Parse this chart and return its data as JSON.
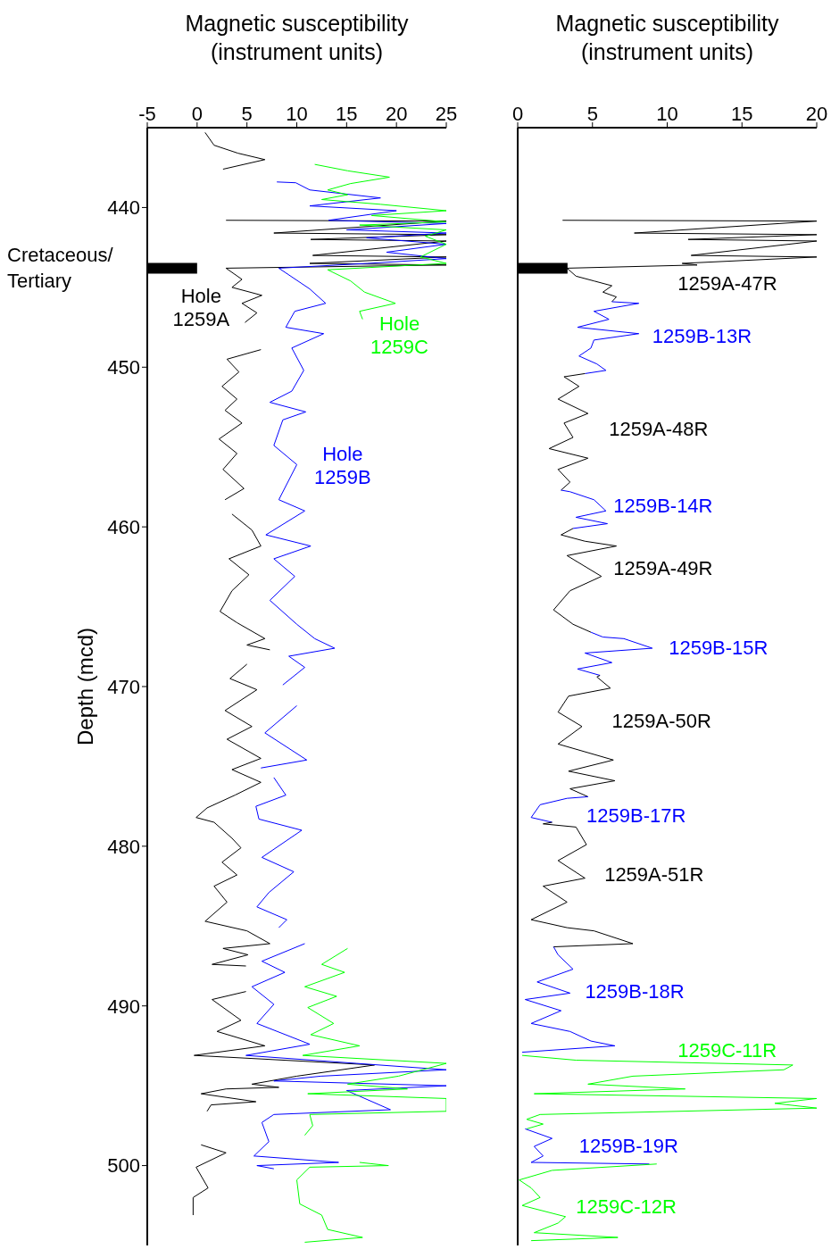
{
  "chart_data": [
    {
      "type": "line",
      "xlabel": "Magnetic susceptibility\n(instrument units)",
      "ylabel": "Depth (mcd)",
      "xlim": [
        -5,
        25
      ],
      "xticks": [
        -5,
        0,
        5,
        10,
        15,
        20,
        25
      ],
      "ylim": [
        505,
        435
      ],
      "yticks": [
        440,
        450,
        460,
        470,
        480,
        490,
        500
      ],
      "marker": "none",
      "line_style": "solid",
      "ref_lines": [
        {
          "axis": "y",
          "value": 443.8,
          "label": "Cretaceous/\nTertiary",
          "color": "#000000"
        }
      ],
      "series": [
        {
          "name": "Hole\n1259A",
          "color": "#000000",
          "x": [
            0.8,
            1.7,
            4.1,
            6.8,
            2.6,
            null,
            2.9,
            25,
            7.7,
            25,
            11.4,
            25,
            11.6,
            25,
            11.3,
            25,
            2.9,
            4.5,
            3.5,
            6.5,
            4.5,
            6.0,
            4.8,
            null,
            6.4,
            3.0,
            4.2,
            2.5,
            4.0,
            2.8,
            4.5,
            2.2,
            4.0,
            2.6,
            4.7,
            2.8,
            null,
            3.5,
            5.5,
            6.4,
            3.2,
            5.2,
            3.5,
            2.3,
            4.0,
            6.8,
            5.0,
            7.3,
            null,
            5.0,
            3.3,
            6.0,
            2.8,
            5.5,
            3.0,
            6.4,
            3.5,
            6.4,
            3.8,
            1.0,
            -0.1,
            1.7,
            3.5,
            4.4,
            2.5,
            4.0,
            1.7,
            3.0,
            0.8,
            5.0,
            7.3,
            2.6,
            5.1,
            1.5,
            4.9,
            null,
            4.9,
            1.5,
            4.4,
            2.0,
            6.8,
            -0.3,
            17.8,
            10.0,
            5.5,
            8.2,
            2.9,
            0.4,
            5.9,
            1.4,
            1.0,
            null,
            0.4,
            2.9,
            -0.1,
            1.1,
            -0.4,
            -0.4
          ],
          "values": [
            435.3,
            436.1,
            436.6,
            437.0,
            437.6,
            null,
            440.8,
            440.85,
            441.6,
            441.7,
            442.0,
            442.1,
            443.0,
            443.1,
            443.5,
            443.6,
            443.8,
            444.5,
            445.0,
            445.5,
            446.0,
            446.6,
            447.2,
            null,
            448.9,
            449.5,
            450.3,
            451.2,
            452.0,
            452.7,
            453.5,
            454.5,
            455.4,
            456.4,
            457.6,
            458.3,
            null,
            459.2,
            460.2,
            461.2,
            462.0,
            463.0,
            464.0,
            465.3,
            466.0,
            467.0,
            467.4,
            467.7,
            null,
            468.6,
            469.5,
            470.2,
            471.5,
            472.5,
            473.3,
            474.5,
            475.2,
            476.0,
            476.8,
            477.6,
            478.2,
            478.5,
            479.5,
            480.1,
            481.0,
            481.8,
            482.5,
            483.5,
            484.7,
            485.3,
            486.1,
            486.4,
            486.8,
            487.4,
            487.5,
            null,
            489.1,
            489.6,
            490.9,
            491.6,
            492.5,
            493.1,
            493.7,
            494.4,
            494.9,
            495.1,
            495.2,
            495.5,
            496.0,
            496.2,
            496.6,
            null,
            498.7,
            499.2,
            500.1,
            501.4,
            502.0,
            503.1
          ]
        },
        {
          "name": "Hole\n1259B",
          "color": "#0000ff",
          "x": [
            8.0,
            9.9,
            11.3,
            18.4,
            11.3,
            20.0,
            13.2,
            25,
            15.0,
            25,
            17.0,
            25,
            19.0,
            25,
            17.1,
            8.2,
            11.3,
            12.9,
            9.8,
            8.9,
            12.7,
            9.5,
            10.7,
            9.5,
            7.3,
            10.9,
            8.6,
            7.7,
            10.0,
            8.2,
            10.8,
            6.9,
            11.4,
            7.7,
            9.8,
            7.3,
            10.0,
            11.8,
            13.8,
            9.2,
            10.8,
            8.6,
            null,
            10.0,
            6.8,
            11.0,
            6.4,
            null,
            7.7,
            8.9,
            5.9,
            6.2,
            10.5,
            6.5,
            9.7,
            7.2,
            6.0,
            9.0,
            8.2,
            null,
            10.8,
            6.5,
            8.8,
            5.5,
            7.7,
            6.0,
            11.3,
            4.9,
            16.0,
            25,
            12.4,
            7.7,
            25,
            15.0,
            19.4,
            7.7,
            6.5,
            7.2,
            5.7,
            14.2,
            6.0,
            7.7
          ],
          "values": [
            438.4,
            438.45,
            438.9,
            439.4,
            439.9,
            440.2,
            440.8,
            441.0,
            441.4,
            441.6,
            441.9,
            442.3,
            442.8,
            443.2,
            443.5,
            443.8,
            445.1,
            446.0,
            446.5,
            447.5,
            447.9,
            448.8,
            450.2,
            451.5,
            452.2,
            452.8,
            453.3,
            454.9,
            456.1,
            458.3,
            459.0,
            460.5,
            461.2,
            462.0,
            463.1,
            464.6,
            466.1,
            467.0,
            467.6,
            468.1,
            468.8,
            469.9,
            null,
            471.2,
            472.9,
            474.6,
            475.1,
            null,
            475.7,
            476.8,
            477.5,
            478.3,
            479.0,
            480.7,
            481.6,
            482.9,
            483.8,
            484.6,
            485.1,
            null,
            486.1,
            487.2,
            487.9,
            488.8,
            489.9,
            491.1,
            492.4,
            493.1,
            493.6,
            494.0,
            494.4,
            494.7,
            495.0,
            495.3,
            496.5,
            496.8,
            497.3,
            498.5,
            499.4,
            499.8,
            500.0,
            500.2
          ]
        },
        {
          "name": "Hole\n1259C",
          "color": "#00ff00",
          "x": [
            11.8,
            15.1,
            19.3,
            15.4,
            13.1,
            15.1,
            12.5,
            18.4,
            25,
            17.5,
            25,
            16.3,
            25,
            22.9,
            25,
            22.4,
            25,
            13.1,
            15.4,
            16.8,
            19.9,
            16.3,
            16.6,
            null,
            15.1,
            12.5,
            14.8,
            10.8,
            14.0,
            11.1,
            13.7,
            11.4,
            16.3,
            10.6,
            25,
            20.2,
            15.1,
            21.1,
            11.1,
            25,
            25,
            11.3,
            11.6,
            10.8,
            null,
            16.3,
            19.2,
            11.3,
            10.0,
            10.3,
            12.5,
            13.1,
            16.6,
            10.8
          ],
          "values": [
            437.3,
            437.7,
            438.1,
            438.5,
            438.9,
            439.2,
            439.5,
            439.8,
            440.2,
            440.5,
            440.9,
            441.1,
            441.4,
            441.8,
            442.3,
            443.1,
            443.5,
            443.9,
            444.6,
            445.3,
            446.0,
            446.5,
            447.0,
            null,
            486.4,
            487.4,
            487.9,
            488.8,
            489.4,
            490.1,
            491.1,
            491.8,
            492.5,
            493.1,
            493.6,
            494.4,
            494.9,
            495.2,
            495.5,
            495.8,
            496.6,
            496.8,
            497.5,
            498.1,
            null,
            499.8,
            500.0,
            500.1,
            500.9,
            502.4,
            503.1,
            504.0,
            504.5,
            504.8
          ]
        }
      ]
    },
    {
      "type": "line",
      "xlabel": "Magnetic susceptibility\n(instrument units)",
      "xlim": [
        0,
        20
      ],
      "xticks": [
        0,
        5,
        10,
        15,
        20
      ],
      "ylim": [
        505,
        435
      ],
      "yticks": [
        440,
        450,
        460,
        470,
        480,
        490,
        500
      ],
      "tick_labels": "x",
      "marker": "none",
      "line_style": "solid",
      "ref_lines": [
        {
          "axis": "y",
          "value": 443.8,
          "color": "#000000"
        }
      ],
      "series": [
        {
          "name": "1259A-47R",
          "color": "#000000",
          "x": [
            3.0,
            20,
            7.8,
            20,
            11.4,
            20,
            11.6,
            20,
            11.0,
            12.0,
            3.3,
            3.9,
            5.1,
            6.3,
            5.7,
            6.6,
            6.3
          ],
          "values": [
            440.8,
            440.85,
            441.6,
            441.7,
            442.0,
            442.1,
            443.0,
            443.1,
            443.5,
            443.6,
            443.8,
            444.3,
            444.6,
            444.9,
            445.3,
            445.6,
            445.9
          ]
        },
        {
          "name": "1259B-13R",
          "color": "#0000ff",
          "x": [
            6.3,
            8.1,
            5.1,
            6.1,
            4.0,
            8.1,
            5.1,
            4.9,
            4.1,
            5.3,
            5.9,
            4.5
          ],
          "values": [
            445.9,
            446.0,
            446.5,
            447.0,
            447.5,
            447.9,
            448.3,
            448.8,
            449.3,
            449.8,
            450.2,
            450.4
          ]
        },
        {
          "name": "1259A-48R",
          "color": "#000000",
          "x": [
            4.5,
            3.1,
            4.1,
            2.7,
            4.7,
            3.1,
            3.7,
            2.1,
            4.7,
            2.7,
            3.5,
            2.9
          ],
          "values": [
            450.4,
            450.6,
            451.2,
            452.0,
            452.9,
            453.5,
            454.4,
            455.1,
            455.7,
            456.4,
            457.2,
            457.7
          ]
        },
        {
          "name": "1259B-14R",
          "color": "#0000ff",
          "x": [
            2.9,
            3.5,
            5.1,
            5.9,
            3.9,
            6.0,
            3.7
          ],
          "values": [
            457.7,
            457.8,
            458.3,
            459.0,
            459.4,
            459.8,
            460.1
          ]
        },
        {
          "name": "1259A-49R",
          "color": "#000000",
          "x": [
            3.7,
            2.9,
            4.5,
            6.6,
            3.3,
            5.6,
            3.5,
            2.4,
            3.7,
            4.9
          ],
          "values": [
            460.1,
            460.5,
            460.9,
            461.2,
            461.8,
            463.1,
            464.0,
            465.2,
            466.1,
            466.6
          ]
        },
        {
          "name": "1259B-15R",
          "color": "#0000ff",
          "x": [
            4.9,
            5.7,
            7.1,
            9.0,
            4.5,
            6.3,
            4.0,
            5.5
          ],
          "values": [
            466.6,
            466.9,
            467.0,
            467.6,
            467.9,
            468.5,
            468.9,
            469.3
          ]
        },
        {
          "name": "1259A-50R",
          "color": "#000000",
          "x": [
            5.5,
            5.3,
            6.2,
            3.4,
            2.7,
            4.3,
            2.7,
            6.4,
            3.4,
            6.5,
            3.5,
            4.7
          ],
          "values": [
            469.3,
            469.4,
            470.1,
            470.6,
            471.6,
            472.5,
            473.6,
            474.6,
            475.3,
            475.9,
            476.4,
            476.9
          ]
        },
        {
          "name": "1259B-17R",
          "color": "#0000ff",
          "x": [
            4.7,
            3.3,
            1.5,
            0.9,
            2.3
          ],
          "values": [
            476.9,
            477.0,
            477.4,
            478.2,
            478.5
          ]
        },
        {
          "name": "1259A-51R",
          "color": "#000000",
          "x": [
            2.3,
            1.7,
            3.9,
            4.6,
            2.7,
            4.5,
            1.7,
            3.3,
            0.9,
            3.3,
            5.1,
            7.7,
            2.4
          ],
          "values": [
            478.5,
            478.6,
            478.8,
            479.9,
            480.9,
            482.0,
            482.5,
            483.5,
            484.6,
            485.1,
            485.3,
            486.1,
            486.3
          ]
        },
        {
          "name": "1259B-18R",
          "color": "#0000ff",
          "x": [
            2.4,
            2.7,
            3.7,
            1.3,
            3.5,
            0.5,
            2.9,
            0.9,
            3.5,
            4.9,
            6.5,
            0.3
          ],
          "values": [
            486.3,
            486.8,
            487.7,
            488.5,
            489.2,
            489.6,
            490.3,
            491.1,
            491.6,
            492.2,
            492.5,
            492.9
          ]
        },
        {
          "name": "1259C-11R",
          "color": "#00ff00",
          "x": [
            0.3,
            3.9,
            18.4,
            17.8,
            7.7,
            4.7,
            11.2,
            1.1,
            20,
            17.2,
            20,
            1.5,
            0.6,
            1.7,
            0.6
          ],
          "values": [
            493.1,
            493.4,
            493.7,
            494.0,
            494.4,
            494.9,
            495.2,
            495.5,
            495.8,
            496.1,
            496.4,
            496.8,
            497.1,
            497.4,
            497.7
          ]
        },
        {
          "name": "1259B-19R",
          "color": "#0000ff",
          "x": [
            0.5,
            2.3,
            1.1,
            1.7,
            0.9,
            8.8
          ],
          "values": [
            497.7,
            498.3,
            498.8,
            499.4,
            499.8,
            499.9
          ]
        },
        {
          "name": "1259C-12R",
          "color": "#00ff00",
          "x": [
            9.3,
            2.3,
            0.1,
            0.9,
            1.5,
            0.3,
            3.2,
            2.7,
            1.1,
            6.7,
            0.9
          ],
          "values": [
            499.9,
            500.3,
            500.9,
            501.4,
            502.0,
            502.5,
            503.2,
            503.6,
            504.2,
            504.5,
            504.7
          ]
        }
      ]
    }
  ]
}
